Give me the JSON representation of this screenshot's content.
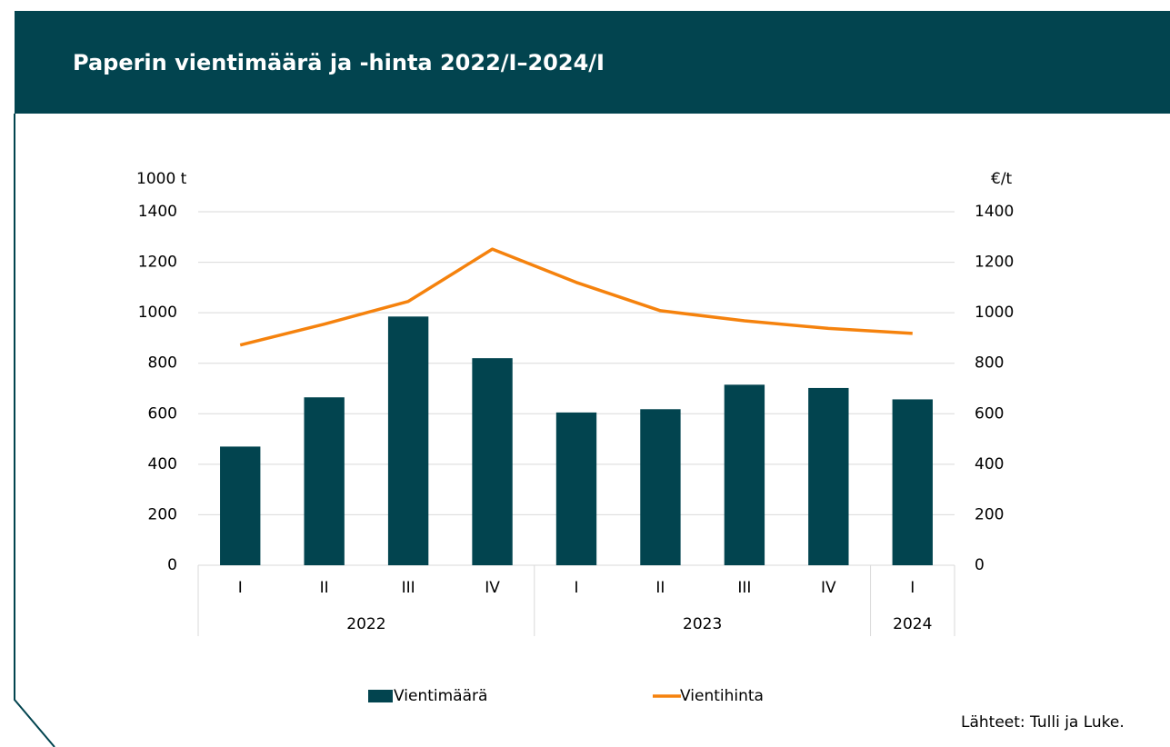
{
  "chart_data": {
    "type": "bar_line",
    "title": "Paperin vientimäärä ja -hinta 2022/I–2024/I",
    "y_label": "1000 t",
    "y2_label": "€/t",
    "categories": [
      "I",
      "II",
      "III",
      "IV",
      "I",
      "II",
      "III",
      "IV",
      "I"
    ],
    "groups": [
      {
        "label": "2022",
        "size": 4
      },
      {
        "label": "2023",
        "size": 4
      },
      {
        "label": "2024",
        "size": 1
      }
    ],
    "series": [
      {
        "name": "Vientimäärä",
        "type": "bar",
        "color": "#02444f",
        "values": [
          470,
          665,
          985,
          820,
          605,
          618,
          715,
          702,
          657
        ]
      },
      {
        "name": "Vientihinta",
        "type": "line",
        "axis": "y2",
        "color": "#f5820d",
        "values": [
          872,
          955,
          1045,
          1252,
          1120,
          1008,
          968,
          938,
          918
        ]
      }
    ],
    "ylim": [
      0,
      1400
    ],
    "yticks": [
      0,
      200,
      400,
      600,
      800,
      1000,
      1200,
      1400
    ],
    "y2lim": [
      0,
      1400
    ],
    "y2ticks": [
      0,
      200,
      400,
      600,
      800,
      1000,
      1200,
      1400
    ],
    "grid": true,
    "legend": "bottom",
    "source": "Lähteet:  Tulli ja Luke."
  }
}
